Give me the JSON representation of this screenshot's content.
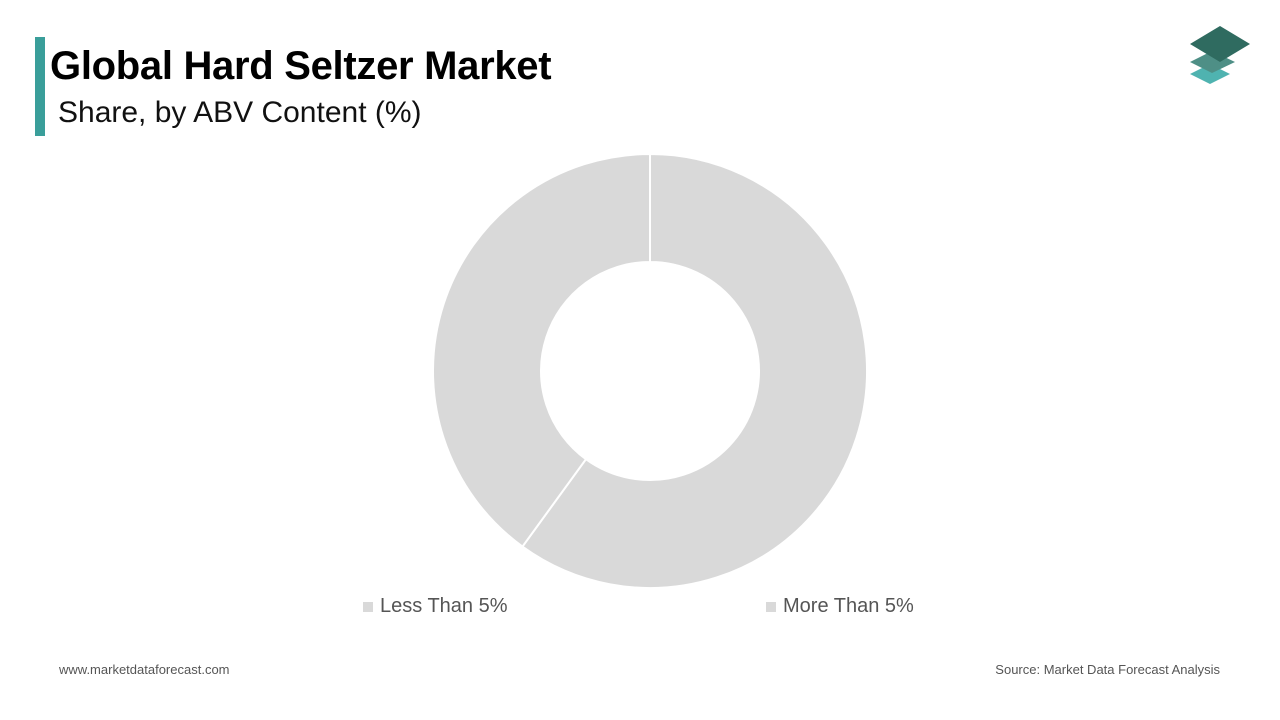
{
  "header": {
    "title": "Global Hard Seltzer Market",
    "subtitle": "Share, by ABV Content (%)"
  },
  "colors": {
    "accent": "#3a9e9a",
    "slice": "#d9d9d9",
    "logo_top": "#2f6b60",
    "logo_mid": "#4e8f86",
    "logo_bottom": "#4fb3b0"
  },
  "chart_data": {
    "type": "pie",
    "donut": true,
    "categories": [
      "Less Than 5%",
      "More Than 5%"
    ],
    "values": [
      40,
      60
    ],
    "title": "Global Hard Seltzer Market",
    "subtitle": "Share, by ABV Content (%)",
    "legend_position": "bottom"
  },
  "footer": {
    "website": "www.marketdataforecast.com",
    "source": "Source: Market Data Forecast Analysis"
  }
}
